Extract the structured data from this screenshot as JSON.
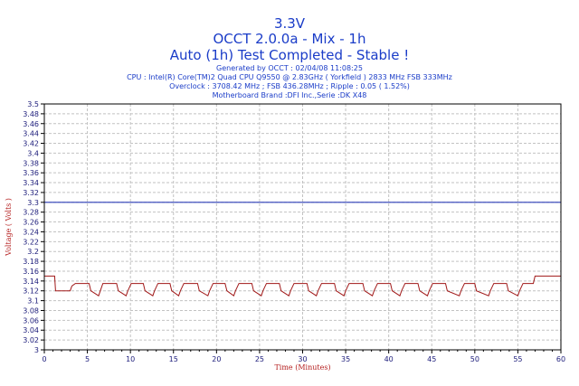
{
  "header": {
    "title_line1": "3.3V",
    "title_line2": "OCCT 2.0.0a - Mix - 1h",
    "title_line3": "Auto (1h) Test Completed - Stable !",
    "generated": "Generated by OCCT : 02/04/08 11:08:25",
    "cpu": "CPU : Intel(R) Core(TM)2 Quad CPU Q9550 @ 2.83GHz ( Yorkfield ) 2833 MHz FSB 333MHz",
    "overclock": "Overclock : 3708.42 MHz ; FSB 436.28MHz ; Ripple : 0.05 ( 1.52%)",
    "motherboard": "Motherboard Brand :DFI Inc.,Serie :DK X48"
  },
  "colors": {
    "title": "#1a3cc8",
    "series": "#a01818",
    "reference": "#2a3cb8",
    "grid": "#c2c2c2",
    "axis_title": "#b52020"
  },
  "chart_data": {
    "type": "line",
    "xlabel": "Time (Minutes)",
    "ylabel": "Voltage ( Volts )",
    "xlim": [
      0,
      60
    ],
    "ylim": [
      3.0,
      3.5
    ],
    "x_ticks": [
      "0",
      "5",
      "10",
      "15",
      "20",
      "25",
      "30",
      "35",
      "40",
      "45",
      "50",
      "55",
      "60"
    ],
    "y_ticks": [
      "3.5",
      "3.48",
      "3.46",
      "3.44",
      "3.42",
      "3.4",
      "3.38",
      "3.36",
      "3.34",
      "3.32",
      "3.3",
      "3.28",
      "3.26",
      "3.24",
      "3.22",
      "3.2",
      "3.18",
      "3.16",
      "3.14",
      "3.12",
      "3.1",
      "3.08",
      "3.06",
      "3.04",
      "3.02",
      "3"
    ],
    "grid": true,
    "reference_line": {
      "y": 3.3
    },
    "series": [
      {
        "x": [
          0,
          1.2,
          1.3,
          3.0,
          3.2,
          3.6,
          5.2,
          5.4,
          6.3,
          6.5,
          6.8,
          8.4,
          8.6,
          9.5,
          9.7,
          10.1,
          11.5,
          11.7,
          12.6,
          12.8,
          13.2,
          14.6,
          14.8,
          15.6,
          15.8,
          16.2,
          17.8,
          18.0,
          19.0,
          19.2,
          19.6,
          21.0,
          21.2,
          22.0,
          22.2,
          22.6,
          24.1,
          24.3,
          25.2,
          25.4,
          25.8,
          27.3,
          27.5,
          28.4,
          28.6,
          29.0,
          30.5,
          30.7,
          31.6,
          31.8,
          32.2,
          33.7,
          33.9,
          34.8,
          35.0,
          35.4,
          37.0,
          37.2,
          38.1,
          38.3,
          38.7,
          40.2,
          40.4,
          41.3,
          41.5,
          41.9,
          43.4,
          43.6,
          44.5,
          44.7,
          45.1,
          46.6,
          46.8,
          48.2,
          48.4,
          48.8,
          50.0,
          50.2,
          51.6,
          51.8,
          52.2,
          53.7,
          53.9,
          55.0,
          55.2,
          55.6,
          56.8,
          57.0,
          60
        ],
        "y": [
          3.15,
          3.15,
          3.12,
          3.12,
          3.13,
          3.135,
          3.135,
          3.12,
          3.11,
          3.12,
          3.135,
          3.135,
          3.12,
          3.11,
          3.12,
          3.135,
          3.135,
          3.12,
          3.11,
          3.12,
          3.135,
          3.135,
          3.12,
          3.11,
          3.12,
          3.135,
          3.135,
          3.12,
          3.11,
          3.12,
          3.135,
          3.135,
          3.12,
          3.11,
          3.12,
          3.135,
          3.135,
          3.12,
          3.11,
          3.12,
          3.135,
          3.135,
          3.12,
          3.11,
          3.12,
          3.135,
          3.135,
          3.12,
          3.11,
          3.12,
          3.135,
          3.135,
          3.12,
          3.11,
          3.12,
          3.135,
          3.135,
          3.12,
          3.11,
          3.12,
          3.135,
          3.135,
          3.12,
          3.11,
          3.12,
          3.135,
          3.135,
          3.12,
          3.11,
          3.12,
          3.135,
          3.135,
          3.12,
          3.11,
          3.12,
          3.135,
          3.135,
          3.12,
          3.11,
          3.12,
          3.135,
          3.135,
          3.12,
          3.11,
          3.12,
          3.135,
          3.135,
          3.15,
          3.15
        ]
      }
    ]
  }
}
